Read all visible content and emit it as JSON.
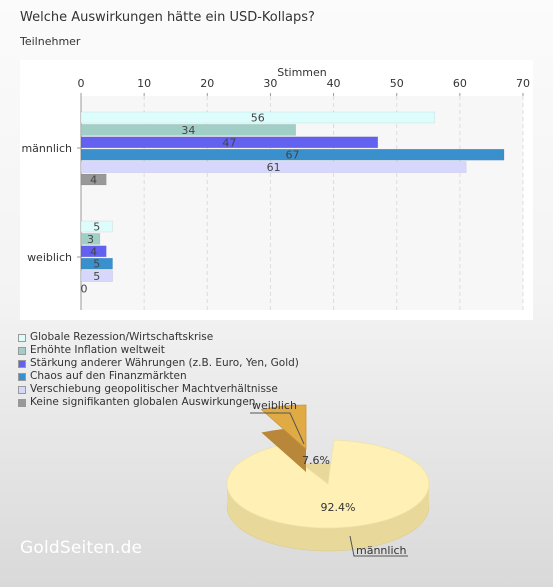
{
  "title": "Welche Auswirkungen hätte ein USD-Kollaps?",
  "subtitle": "Teilnehmer",
  "watermark": "GoldSeiten.de",
  "chart_data": [
    {
      "type": "bar",
      "orientation": "horizontal",
      "xlabel": "Stimmen",
      "xlim": [
        0,
        70
      ],
      "ticks": [
        0,
        10,
        20,
        30,
        40,
        50,
        60,
        70
      ],
      "categories": [
        "männlich",
        "weiblich"
      ],
      "grid": true,
      "legend_position": "bottom",
      "series": [
        {
          "name": "Globale Rezession/Wirtschaftskrise",
          "values": [
            56,
            5
          ],
          "color": "#ddfdfd"
        },
        {
          "name": "Erhöhte Inflation weltweit",
          "values": [
            34,
            3
          ],
          "color": "#a0cfc7"
        },
        {
          "name": "Stärkung anderer Währungen (z.B. Euro, Yen, Gold)",
          "values": [
            47,
            4
          ],
          "color": "#6261f0"
        },
        {
          "name": "Chaos auf den Finanzmärkten",
          "values": [
            67,
            5
          ],
          "color": "#3a8fcd"
        },
        {
          "name": "Verschiebung geopolitischer Machtverhältnisse",
          "values": [
            61,
            5
          ],
          "color": "#d7d7fd"
        },
        {
          "name": "Keine signifikanten globalen Auswirkungen",
          "values": [
            4,
            0
          ],
          "color": "#999999"
        }
      ]
    },
    {
      "type": "pie",
      "slices": [
        {
          "label": "männlich",
          "value": 92.4,
          "value_label": "92.4%",
          "color": "#fff1b6"
        },
        {
          "label": "weiblich",
          "value": 7.6,
          "value_label": "7.6%",
          "color": "#e0aa45"
        }
      ]
    }
  ]
}
